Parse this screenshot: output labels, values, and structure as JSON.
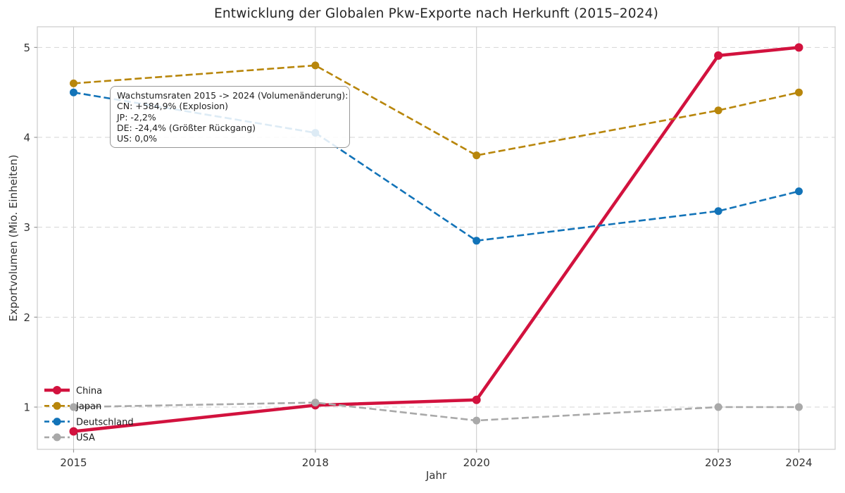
{
  "chart_data": {
    "type": "line",
    "title": "Entwicklung der Globalen Pkw-Exporte nach Herkunft (2015–2024)",
    "xlabel": "Jahr",
    "ylabel": "Exportvolumen (Mio. Einheiten)",
    "x": [
      2015,
      2018,
      2020,
      2023,
      2024
    ],
    "x_tick_labels": [
      "2015",
      "2018",
      "2020",
      "2023",
      "2024"
    ],
    "y_ticks": [
      1,
      2,
      3,
      4,
      5
    ],
    "y_tick_labels": [
      "1",
      "2",
      "3",
      "4",
      "5"
    ],
    "xlim": [
      2014.55,
      2024.45
    ],
    "ylim": [
      0.53,
      5.23
    ],
    "grid": {
      "horizontal": "dashed",
      "vertical": "solid"
    },
    "legend_position": "lower-left",
    "series": [
      {
        "name": "China",
        "color": "#D2123E",
        "style": "solid",
        "linewidth": 4.5,
        "markersize": 6,
        "values": [
          0.73,
          1.02,
          1.08,
          4.91,
          5.0
        ]
      },
      {
        "name": "Japan",
        "color": "#B8860B",
        "style": "dashed",
        "linewidth": 2.6,
        "markersize": 5.5,
        "values": [
          4.6,
          4.8,
          3.8,
          4.3,
          4.5
        ]
      },
      {
        "name": "Deutschland",
        "color": "#1273B8",
        "style": "dashed",
        "linewidth": 2.6,
        "markersize": 5.5,
        "values": [
          4.5,
          4.05,
          2.85,
          3.18,
          3.4
        ]
      },
      {
        "name": "USA",
        "color": "#A9A9A9",
        "style": "dashed",
        "linewidth": 2.6,
        "markersize": 5.5,
        "values": [
          1.0,
          1.05,
          0.85,
          1.0,
          1.0
        ]
      }
    ],
    "annotation": {
      "lines": [
        "Wachstumsraten 2015 -> 2024 (Volumenänderung):",
        "CN: +584,9% (Explosion)",
        "JP: -2,2%",
        "DE: -24,4% (Größter Rückgang)",
        "US: 0,0%"
      ]
    },
    "style_colors": {
      "frame": "#cccccc",
      "grid_vertical": "#c8c8c8",
      "grid_horizontal": "#d5d5d5",
      "tick_mark": "#999999",
      "tick_label": "#333333",
      "legend_text": "#1a1a1a"
    }
  }
}
